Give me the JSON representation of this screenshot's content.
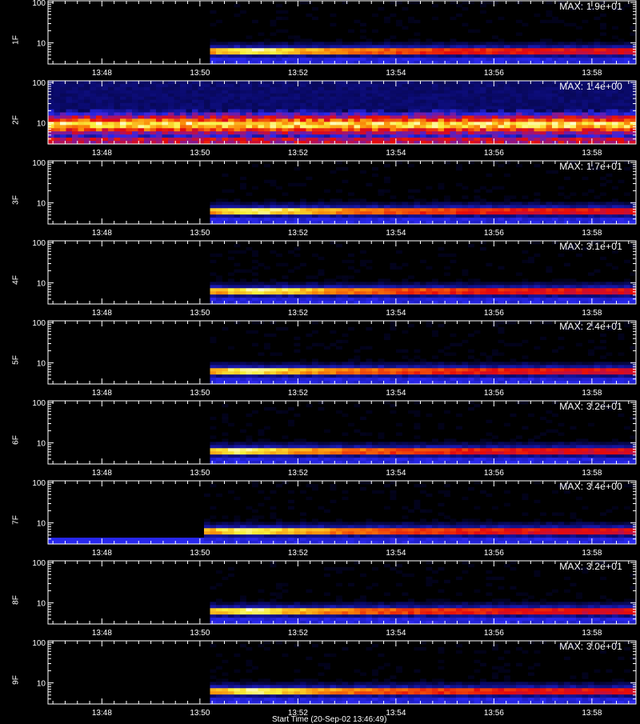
{
  "chart_data": {
    "type": "heatmap",
    "x_ticks": [
      "13:48",
      "13:50",
      "13:52",
      "13:54",
      "13:56",
      "13:58"
    ],
    "x_tick_minutes": [
      48,
      50,
      52,
      54,
      56,
      58
    ],
    "x_range_minutes": [
      46.9,
      58.9
    ],
    "y_scale": "log",
    "y_range": [
      3,
      110
    ],
    "y_ticks": [
      "10",
      "100"
    ],
    "y_tick_values": [
      10,
      100
    ],
    "x_title": "Start Time (20-Sep-02 13:46:49)",
    "panels": [
      {
        "label": "1F",
        "max": "MAX: 1.9e+01",
        "mode": "onset",
        "onset_minute": 50.2,
        "peak_minute": 51.1
      },
      {
        "label": "2F",
        "max": "MAX: 1.4e+00",
        "mode": "uniform"
      },
      {
        "label": "3F",
        "max": "MAX: 1.7e+01",
        "mode": "onset",
        "onset_minute": 50.2,
        "peak_minute": 51.3
      },
      {
        "label": "4F",
        "max": "MAX: 3.1e+01",
        "mode": "onset",
        "onset_minute": 50.2,
        "peak_minute": 51.2
      },
      {
        "label": "5F",
        "max": "MAX: 2.4e+01",
        "mode": "onset",
        "onset_minute": 50.2,
        "peak_minute": 51.0
      },
      {
        "label": "6F",
        "max": "MAX: 3.2e+01",
        "mode": "onset",
        "onset_minute": 50.2,
        "peak_minute": 50.8
      },
      {
        "label": "7F",
        "max": "MAX: 3.4e+00",
        "mode": "onset_lowband",
        "onset_minute": 50.1,
        "peak_minute": 51.0
      },
      {
        "label": "8F",
        "max": "MAX: 3.2e+01",
        "mode": "onset",
        "onset_minute": 50.2,
        "peak_minute": 51.0
      },
      {
        "label": "9F",
        "max": "MAX: 3.0e+01",
        "mode": "onset",
        "onset_minute": 50.2,
        "peak_minute": 51.2
      }
    ]
  }
}
